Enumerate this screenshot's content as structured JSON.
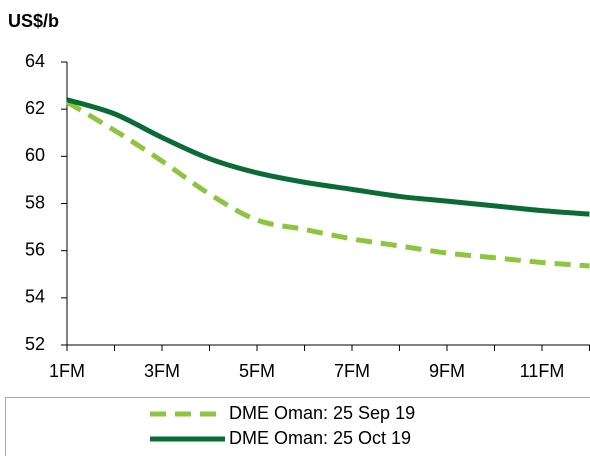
{
  "chart_data": {
    "type": "line",
    "y_label": "US$/b",
    "categories": [
      "1FM",
      null,
      "3FM",
      null,
      "5FM",
      null,
      "7FM",
      null,
      "9FM",
      null,
      "11FM",
      null
    ],
    "series": [
      {
        "name": "DME Oman: 25 Sep 19",
        "color": "#8cc63f",
        "dashed": true,
        "values": [
          62.3,
          61.1,
          59.8,
          58.4,
          57.3,
          56.9,
          56.5,
          56.2,
          55.9,
          55.7,
          55.5,
          55.35
        ]
      },
      {
        "name": "DME Oman: 25 Oct 19",
        "color": "#0b6b35",
        "dashed": false,
        "values": [
          62.4,
          61.8,
          60.8,
          59.9,
          59.3,
          58.9,
          58.6,
          58.3,
          58.1,
          57.9,
          57.7,
          57.55
        ]
      }
    ],
    "ylim": [
      52,
      64
    ],
    "yticks": [
      52,
      54,
      56,
      58,
      60,
      62,
      64
    ],
    "grid": false,
    "legend": "bottom"
  }
}
